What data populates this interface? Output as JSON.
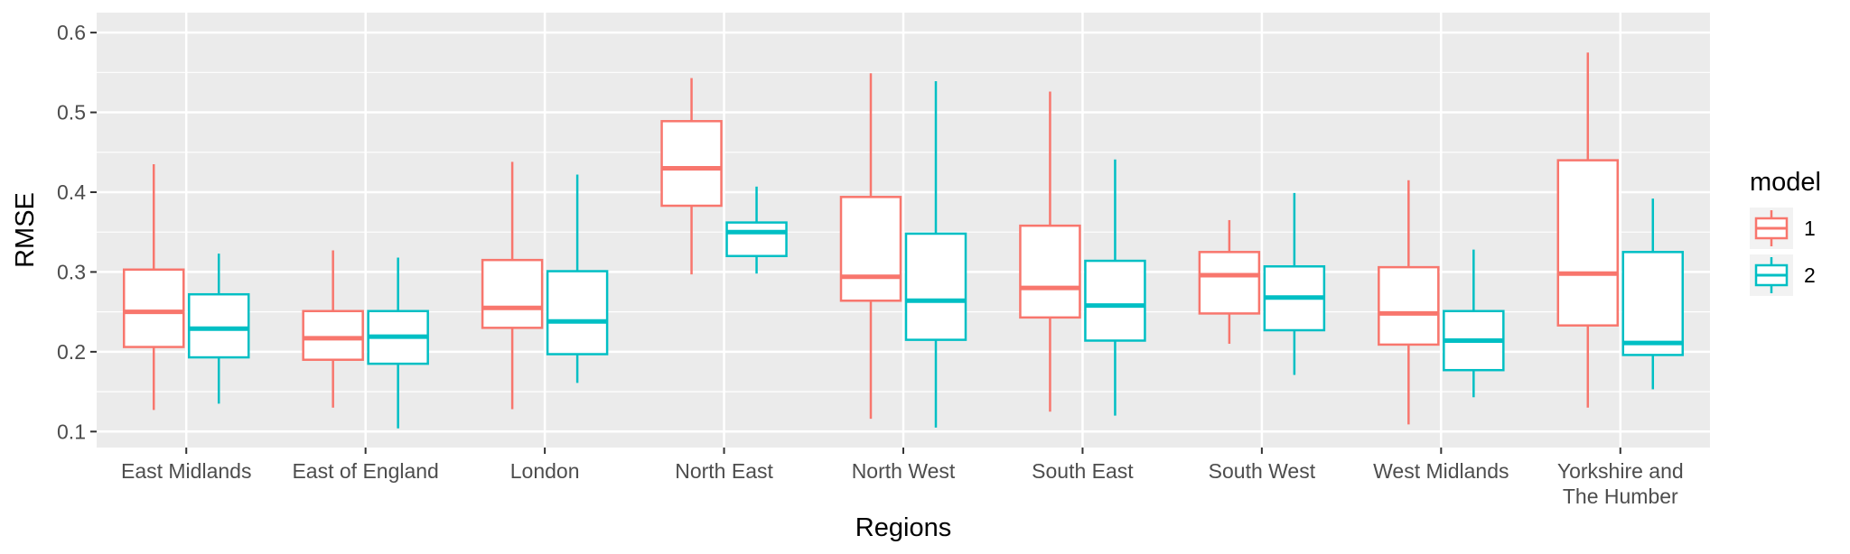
{
  "chart_data": {
    "type": "boxplot",
    "xlabel": "Regions",
    "ylabel": "RMSE",
    "ylim": [
      0.08,
      0.625
    ],
    "yticks": [
      0.1,
      0.2,
      0.3,
      0.4,
      0.5,
      0.6
    ],
    "ytick_labels": [
      "0.1",
      "0.2",
      "0.3",
      "0.4",
      "0.5",
      "0.6"
    ],
    "grid": true,
    "legend": {
      "title": "model",
      "position": "right"
    },
    "categories": [
      "East Midlands",
      "East of England",
      "London",
      "North East",
      "North West",
      "South East",
      "South West",
      "West Midlands",
      "Yorkshire and The Humber"
    ],
    "category_label_lines": [
      [
        "East Midlands"
      ],
      [
        "East of England"
      ],
      [
        "London"
      ],
      [
        "North East"
      ],
      [
        "North West"
      ],
      [
        "South East"
      ],
      [
        "South West"
      ],
      [
        "West Midlands"
      ],
      [
        "Yorkshire and",
        "The Humber"
      ]
    ],
    "series": [
      {
        "name": "1",
        "color": "#F8766D",
        "boxes": [
          {
            "min": 0.127,
            "q1": 0.206,
            "median": 0.25,
            "q3": 0.303,
            "max": 0.435
          },
          {
            "min": 0.13,
            "q1": 0.19,
            "median": 0.217,
            "q3": 0.251,
            "max": 0.327
          },
          {
            "min": 0.128,
            "q1": 0.23,
            "median": 0.255,
            "q3": 0.315,
            "max": 0.438
          },
          {
            "min": 0.297,
            "q1": 0.383,
            "median": 0.43,
            "q3": 0.489,
            "max": 0.543
          },
          {
            "min": 0.116,
            "q1": 0.264,
            "median": 0.294,
            "q3": 0.394,
            "max": 0.549
          },
          {
            "min": 0.125,
            "q1": 0.243,
            "median": 0.28,
            "q3": 0.358,
            "max": 0.526
          },
          {
            "min": 0.21,
            "q1": 0.248,
            "median": 0.296,
            "q3": 0.325,
            "max": 0.365
          },
          {
            "min": 0.109,
            "q1": 0.209,
            "median": 0.248,
            "q3": 0.306,
            "max": 0.415
          },
          {
            "min": 0.13,
            "q1": 0.233,
            "median": 0.298,
            "q3": 0.44,
            "max": 0.575
          }
        ]
      },
      {
        "name": "2",
        "color": "#00BFC4",
        "boxes": [
          {
            "min": 0.135,
            "q1": 0.193,
            "median": 0.229,
            "q3": 0.272,
            "max": 0.323
          },
          {
            "min": 0.104,
            "q1": 0.185,
            "median": 0.219,
            "q3": 0.251,
            "max": 0.318
          },
          {
            "min": 0.161,
            "q1": 0.197,
            "median": 0.238,
            "q3": 0.301,
            "max": 0.422
          },
          {
            "min": 0.298,
            "q1": 0.32,
            "median": 0.35,
            "q3": 0.362,
            "max": 0.407
          },
          {
            "min": 0.105,
            "q1": 0.215,
            "median": 0.264,
            "q3": 0.348,
            "max": 0.539
          },
          {
            "min": 0.12,
            "q1": 0.214,
            "median": 0.258,
            "q3": 0.314,
            "max": 0.441
          },
          {
            "min": 0.171,
            "q1": 0.227,
            "median": 0.268,
            "q3": 0.307,
            "max": 0.399
          },
          {
            "min": 0.143,
            "q1": 0.177,
            "median": 0.214,
            "q3": 0.251,
            "max": 0.328
          },
          {
            "min": 0.153,
            "q1": 0.196,
            "median": 0.211,
            "q3": 0.325,
            "max": 0.392
          }
        ]
      }
    ]
  },
  "colors": {
    "panel": "#EBEBEB",
    "grid": "#FFFFFF",
    "box_fill": "#FFFFFF"
  }
}
